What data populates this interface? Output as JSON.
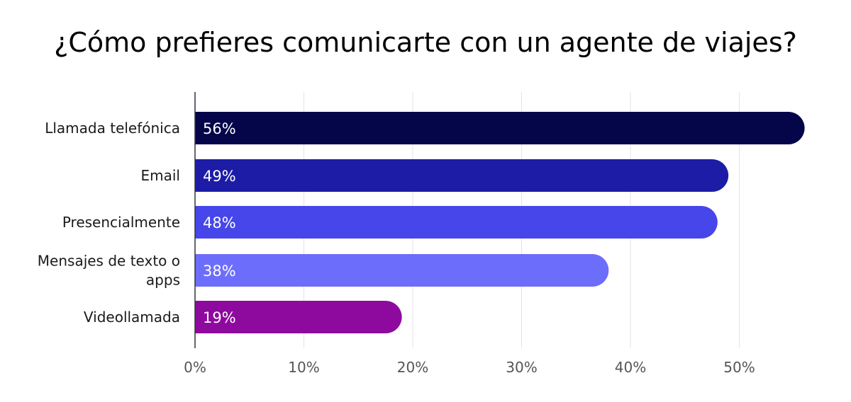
{
  "chart_data": {
    "type": "bar",
    "orientation": "horizontal",
    "title": "¿Cómo prefieres comunicarte con un agente de viajes?",
    "categories": [
      [
        "Llamada telefónica"
      ],
      [
        "Email"
      ],
      [
        "Presencialmente"
      ],
      [
        "Mensajes de texto o",
        "apps"
      ],
      [
        "Videollamada"
      ]
    ],
    "values": [
      56,
      49,
      48,
      38,
      19
    ],
    "data_labels": [
      "56%",
      "49%",
      "48%",
      "38%",
      "19%"
    ],
    "colors": [
      "#05054a",
      "#1c1ca6",
      "#4646ea",
      "#6d6dfb",
      "#8e0a9e"
    ],
    "xlim": [
      0,
      56
    ],
    "xticks": [
      0,
      10,
      20,
      30,
      40,
      50
    ],
    "xtick_labels": [
      "0%",
      "10%",
      "20%",
      "30%",
      "40%",
      "50%"
    ],
    "grid": true,
    "legend": "none"
  }
}
